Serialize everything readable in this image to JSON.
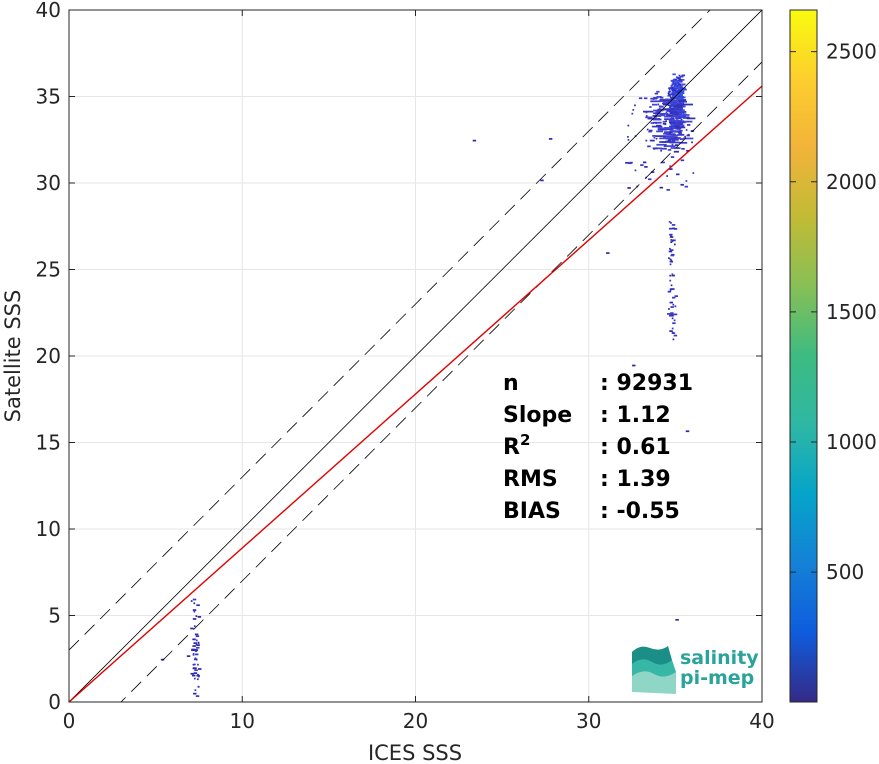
{
  "chart_data": {
    "type": "heatmap",
    "title": "",
    "xlabel": "ICES SSS",
    "ylabel": "Satellite SSS",
    "xlim": [
      0,
      40
    ],
    "ylim": [
      0,
      40
    ],
    "xticks": [
      0,
      10,
      20,
      30,
      40
    ],
    "yticks": [
      0,
      5,
      10,
      15,
      20,
      25,
      30,
      35,
      40
    ],
    "grid": true,
    "colorbar": {
      "colormap": "parula",
      "range": [
        1,
        2660
      ],
      "ticks": [
        500,
        1000,
        1500,
        2000,
        2500
      ]
    },
    "lines": [
      {
        "name": "one-to-one",
        "color": "#000000",
        "style": "solid",
        "slope": 1,
        "intercept": 0
      },
      {
        "name": "upper-bound",
        "color": "#000000",
        "style": "dashed",
        "slope": 1,
        "intercept": 3
      },
      {
        "name": "lower-bound",
        "color": "#000000",
        "style": "dashed",
        "slope": 1,
        "intercept": -3
      },
      {
        "name": "regression",
        "color": "#e00000",
        "style": "solid",
        "slope": 0.89,
        "intercept": 0
      }
    ],
    "density_clusters": [
      {
        "x": [
          34.5,
          35.5
        ],
        "y": [
          33.0,
          36.5
        ],
        "density": "high"
      },
      {
        "x": [
          33.0,
          35.8
        ],
        "y": [
          31.5,
          35.5
        ],
        "density": "medium"
      },
      {
        "x": [
          32.0,
          36.0
        ],
        "y": [
          29.5,
          35.0
        ],
        "density": "low"
      },
      {
        "x": [
          34.5,
          35.0
        ],
        "y": [
          19.5,
          29.5
        ],
        "density": "low"
      },
      {
        "x": [
          7.0,
          7.5
        ],
        "y": [
          0,
          6.5
        ],
        "density": "low"
      }
    ],
    "stats": {
      "rows": [
        {
          "key": "n",
          "value": ": 92931"
        },
        {
          "key": "Slope",
          "value": ": 1.12"
        },
        {
          "key": "R",
          "sup": "2",
          "value": ": 0.61"
        },
        {
          "key": "RMS",
          "value": ": 1.39"
        },
        {
          "key": "BIAS",
          "value": ": -0.55"
        }
      ]
    }
  },
  "logo": {
    "line1": "salinity",
    "line2": "pi-mep",
    "color": "#2aa39a"
  }
}
